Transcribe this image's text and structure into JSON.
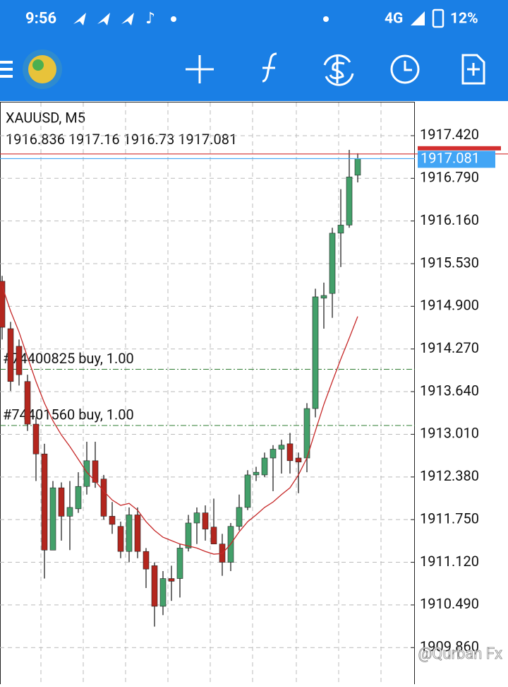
{
  "status_bar": {
    "time": "9:56",
    "network": "4G",
    "battery": "12%"
  },
  "watermark": "@Qurban Fx",
  "chart_data": {
    "type": "candlestick",
    "title": "XAUUSD, M5",
    "open": [
      1915.27,
      1914.57,
      1914.31,
      1913.79,
      1913.16,
      1912.72,
      1911.3,
      1912.22,
      1911.8,
      1911.91,
      1912.24,
      1912.62,
      1912.35,
      1911.8,
      1911.65,
      1911.28,
      1911.82,
      1911.28,
      1911.07,
      1910.47,
      1910.88,
      1910.88,
      1911.33,
      1911.7,
      1911.85,
      1911.64,
      1911.39,
      1911.12,
      1911.65,
      1911.93,
      1912.41,
      1912.41,
      1912.66,
      1912.79,
      1912.87,
      1912.66,
      1912.66,
      1913.39,
      1915.02,
      1915.09,
      1915.98,
      1916.1,
      1916.836
    ],
    "high": [
      1915.35,
      1914.67,
      1914.41,
      1913.89,
      1913.26,
      1912.87,
      1912.32,
      1912.3,
      1912.32,
      1912.45,
      1912.9,
      1912.9,
      1912.41,
      1912.01,
      1911.72,
      1911.93,
      1911.93,
      1911.33,
      1911.12,
      1910.99,
      1911.07,
      1911.39,
      1911.82,
      1911.93,
      1911.96,
      1912.06,
      1911.54,
      1911.7,
      1912.12,
      1912.48,
      1912.53,
      1912.74,
      1912.85,
      1912.93,
      1913.03,
      1912.74,
      1913.47,
      1915.16,
      1915.25,
      1916.06,
      1916.63,
      1917.21,
      1917.16
    ],
    "low": [
      1914.41,
      1913.65,
      1913.73,
      1913.06,
      1912.32,
      1910.88,
      1911.3,
      1911.44,
      1911.3,
      1911.85,
      1912.12,
      1912.22,
      1911.75,
      1911.54,
      1911.18,
      1911.12,
      1911.18,
      1910.74,
      1910.17,
      1910.34,
      1910.55,
      1910.6,
      1911.28,
      1911.39,
      1911.44,
      1911.39,
      1910.92,
      1910.99,
      1911.59,
      1911.89,
      1912.32,
      1912.38,
      1912.17,
      1912.43,
      1912.43,
      1912.14,
      1912.45,
      1913.26,
      1914.57,
      1914.73,
      1915.48,
      1916.06,
      1916.73
    ],
    "close": [
      1914.59,
      1913.79,
      1913.89,
      1913.16,
      1912.72,
      1911.3,
      1912.22,
      1911.8,
      1911.93,
      1912.24,
      1912.62,
      1912.3,
      1911.8,
      1911.68,
      1911.28,
      1911.82,
      1911.28,
      1911.02,
      1910.47,
      1910.88,
      1910.84,
      1911.33,
      1911.7,
      1911.85,
      1911.61,
      1911.39,
      1911.12,
      1911.65,
      1911.93,
      1912.41,
      1912.45,
      1912.66,
      1912.79,
      1912.85,
      1912.62,
      1912.6,
      1913.39,
      1915.04,
      1915.06,
      1915.98,
      1916.1,
      1916.81,
      1917.081
    ],
    "up_color": "#43a06a",
    "down_color": "#b3261e",
    "ma": {
      "color": "#c62828",
      "values": [
        1915.2,
        1914.83,
        1914.52,
        1914.15,
        1913.79,
        1913.47,
        1913.21,
        1913.0,
        1912.83,
        1912.64,
        1912.45,
        1912.32,
        1912.17,
        1912.04,
        1911.96,
        1911.99,
        1911.89,
        1911.72,
        1911.59,
        1911.49,
        1911.44,
        1911.39,
        1911.36,
        1911.33,
        1911.28,
        1911.24,
        1911.25,
        1911.39,
        1911.57,
        1911.72,
        1911.82,
        1911.93,
        1912.01,
        1912.12,
        1912.22,
        1912.41,
        1912.66,
        1913.06,
        1913.45,
        1913.79,
        1914.12,
        1914.43,
        1914.75
      ]
    },
    "ask": {
      "value": 1917.15,
      "color": "#d32f2f"
    },
    "bid_color": "#42a5f5",
    "orders": [
      {
        "label": "#74400825 buy, 1.00",
        "value": 1913.97
      },
      {
        "label": "#74401560 buy, 1.00",
        "value": 1913.14
      }
    ],
    "order_color": "#2e7d32",
    "ylim": [
      1909.32,
      1917.91
    ],
    "yticks": [
      {
        "value": 1917.42,
        "label": "1917.420"
      },
      {
        "value": 1916.79,
        "label": "1916.790"
      },
      {
        "value": 1916.16,
        "label": "1916.160"
      },
      {
        "value": 1915.53,
        "label": "1915.530"
      },
      {
        "value": 1914.9,
        "label": "1914.900"
      },
      {
        "value": 1914.27,
        "label": "1914.270"
      },
      {
        "value": 1913.64,
        "label": "1913.640"
      },
      {
        "value": 1913.01,
        "label": "1913.010"
      },
      {
        "value": 1912.38,
        "label": "1912.380"
      },
      {
        "value": 1911.75,
        "label": "1911.750"
      },
      {
        "value": 1911.12,
        "label": "1911.120"
      },
      {
        "value": 1910.49,
        "label": "1910.490"
      },
      {
        "value": 1909.86,
        "label": "1909.860"
      }
    ],
    "grid": true
  }
}
